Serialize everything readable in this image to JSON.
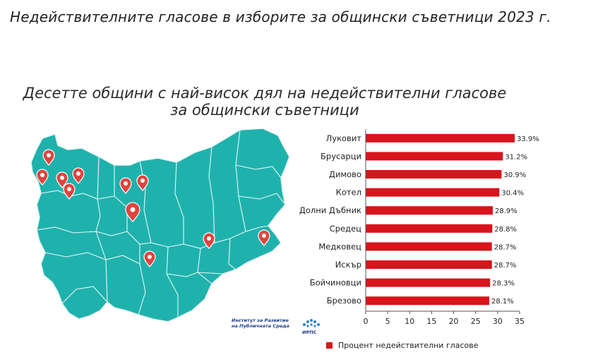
{
  "page": {
    "title": "Недействителните гласове в изборите за общински съветници 2023 г."
  },
  "colors": {
    "bar": "#d8141c",
    "map_fill": "#1fb2ad",
    "map_border": "#e8f7f6",
    "pin": "#e0443e"
  },
  "logo": {
    "line1": "Институт за Развитие",
    "line2": "на Публичната Среда",
    "abbr": "ИРПС"
  },
  "chart_data": {
    "type": "bar",
    "orientation": "horizontal",
    "title": "Десетте общини с най-висок дял на недействителни гласове",
    "subtitle": "за общински съветници",
    "categories": [
      "Луковит",
      "Брусарци",
      "Димово",
      "Котел",
      "Долни Дъбник",
      "Средец",
      "Медковец",
      "Искър",
      "Бойчиновци",
      "Брезово"
    ],
    "series": [
      {
        "name": "Процент недействителни гласове",
        "values": [
          33.9,
          31.2,
          30.9,
          30.4,
          28.9,
          28.8,
          28.7,
          28.7,
          28.3,
          28.1
        ],
        "labels": [
          "33.9%",
          "31.2%",
          "30.9%",
          "30.4%",
          "28.9%",
          "28.8%",
          "28.7%",
          "28.7%",
          "28.3%",
          "28.1%"
        ]
      }
    ],
    "xlim": [
      0,
      35
    ],
    "xticks": [
      "0",
      "5",
      "10",
      "15",
      "20",
      "25",
      "30",
      "35"
    ],
    "grid": false,
    "legend": "bottom"
  }
}
